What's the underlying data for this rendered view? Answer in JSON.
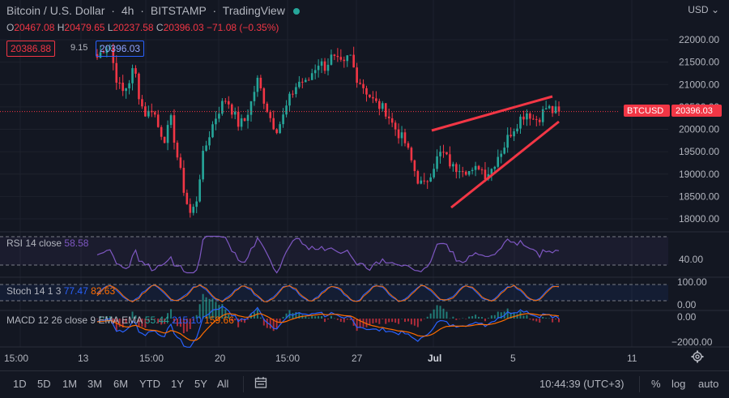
{
  "header": {
    "symbol": "Bitcoin / U.S. Dollar",
    "interval": "4h",
    "exchange": "BITSTAMP",
    "source": "TradingView",
    "ohlc": {
      "o_label": "O",
      "o": "20467.08",
      "h_label": "H",
      "h": "20479.65",
      "l_label": "L",
      "l": "20237.58",
      "c_label": "C",
      "c": "20396.03",
      "change": "−71.08 (−0.35%)"
    },
    "bid": "20386.88",
    "spread": "9.15",
    "ask": "20396.03"
  },
  "currency": "USD",
  "price_axis": {
    "labels": [
      "22000.00",
      "21500.00",
      "21000.00",
      "20500.00",
      "20000.00",
      "19500.00",
      "19000.00",
      "18500.00",
      "18000.00"
    ]
  },
  "last_price": {
    "ticker": "BTCUSD",
    "value": "20396.03"
  },
  "indicators": {
    "rsi": {
      "name": "RSI",
      "params": "14 close",
      "value": "58.58",
      "axis_label": "40.00"
    },
    "stoch": {
      "name": "Stoch",
      "params": "14 1 3",
      "k": "77.47",
      "d": "82.63",
      "axis_top": "100.00",
      "axis_bottom": "0.00"
    },
    "macd": {
      "name": "MACD",
      "params": "12 26 close 9 EMA EMA",
      "v1": "55.44",
      "v2": "215.10",
      "v3": "159.66",
      "axis_top": "0.00",
      "axis_bottom": "−2000.00"
    }
  },
  "time_axis": [
    "15:00",
    "13",
    "15:00",
    "20",
    "15:00",
    "27",
    "Jul",
    "5",
    "11"
  ],
  "bottom_toolbar": {
    "ranges": [
      "1D",
      "5D",
      "1M",
      "3M",
      "6M",
      "YTD",
      "1Y",
      "5Y",
      "All"
    ],
    "time": "10:44:39 (UTC+3)",
    "percent": "%",
    "log": "log",
    "auto": "auto"
  },
  "colors": {
    "up": "#26a69a",
    "down": "#f23645",
    "background": "#131722",
    "rsi": "#7e57c2",
    "stoch_k": "#2962ff",
    "stoch_d": "#ff6d00",
    "trendline": "#f23645"
  },
  "icons": [
    "gear-icon",
    "calendar-range-icon",
    "live-dot-icon"
  ],
  "chart_data": {
    "type": "candlestick",
    "series_close_anchors": [
      21600,
      21800,
      21900,
      21200,
      20800,
      21000,
      21400,
      20600,
      20300,
      20500,
      20000,
      19800,
      20200,
      19400,
      18700,
      18100,
      18300,
      19300,
      19800,
      20200,
      20500,
      20700,
      20400,
      20100,
      20200,
      20600,
      21100,
      20700,
      20300,
      20000,
      20200,
      20600,
      20900,
      21100,
      21000,
      21300,
      21500,
      21400,
      21600,
      21500,
      21400,
      21700,
      21200,
      21000,
      20800,
      20600,
      20500,
      20400,
      20100,
      19900,
      19700,
      19300,
      18900,
      18700,
      19000,
      19300,
      19500,
      19300,
      19100,
      19200,
      19100,
      19000,
      19200,
      19000,
      19100,
      19400,
      19600,
      19900,
      20100,
      20300,
      20400,
      20200,
      20300,
      20500,
      20400,
      20396.03
    ],
    "y_range": [
      17800,
      22300
    ],
    "current": 20396.03
  }
}
